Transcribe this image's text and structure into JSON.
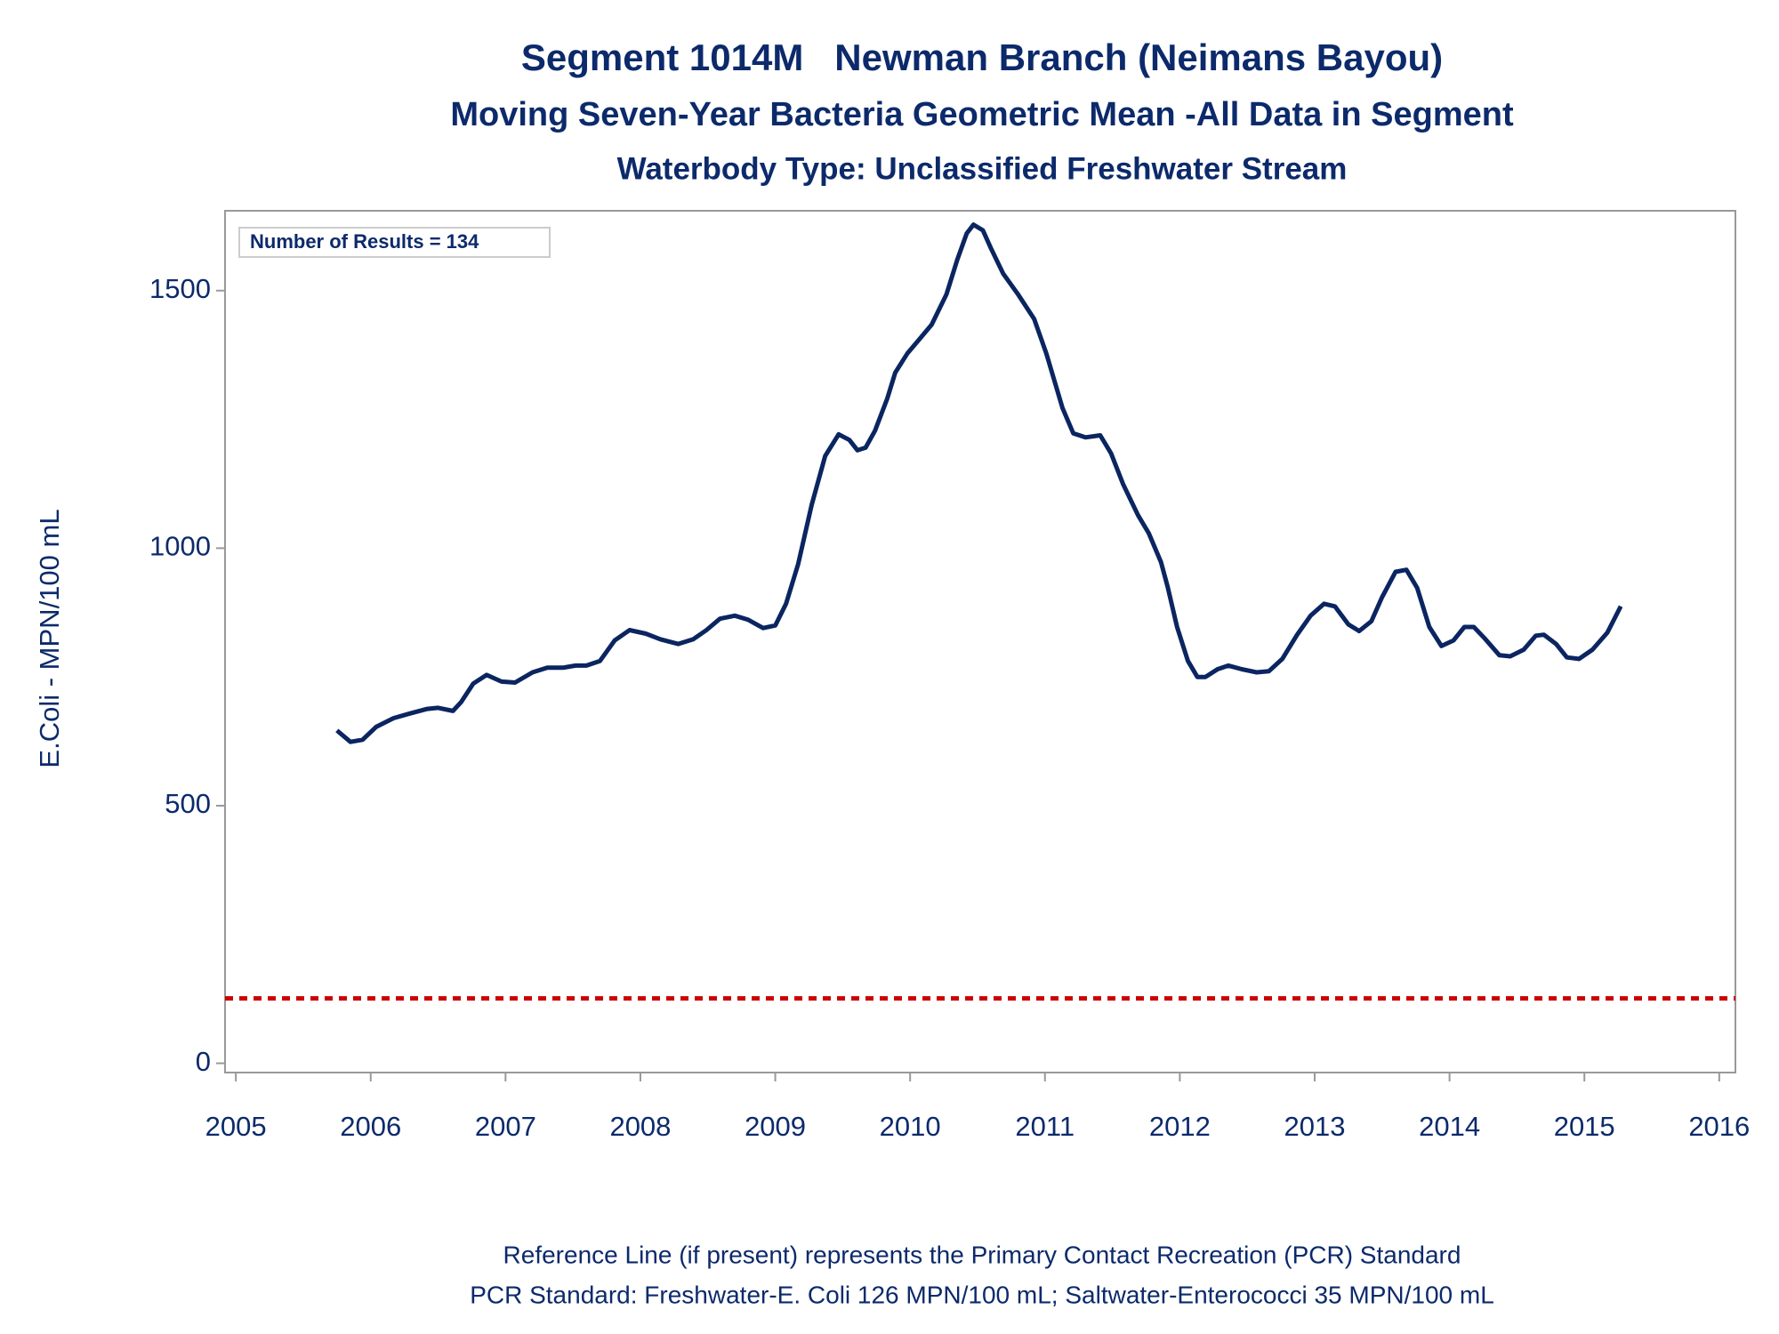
{
  "chart_data": {
    "type": "line",
    "title": "Segment 1014M   Newman Branch (Neimans Bayou)",
    "subtitle": "Moving Seven-Year Bacteria Geometric Mean -All Data in Segment",
    "subtitle2": "Waterbody Type: Unclassified Freshwater Stream",
    "y_label": "E.Coli - MPN/100 mL",
    "annotation": "Number of Results = 134",
    "footnotes": [
      "Reference Line (if present) represents the Primary Contact Recreation (PCR) Standard",
      "PCR Standard: Freshwater-E. Coli 126 MPN/100 mL; Saltwater-Enterococci 35 MPN/100 mL"
    ],
    "color": "#0a2560",
    "reference_line": {
      "value": 126,
      "color": "#cc0000"
    },
    "x": [
      2005.75,
      2005.85,
      2005.94,
      2006.04,
      2006.17,
      2006.29,
      2006.42,
      2006.5,
      2006.61,
      2006.67,
      2006.76,
      2006.86,
      2006.97,
      2007.07,
      2007.2,
      2007.31,
      2007.43,
      2007.52,
      2007.6,
      2007.7,
      2007.81,
      2007.92,
      2008.04,
      2008.15,
      2008.28,
      2008.39,
      2008.49,
      2008.59,
      2008.7,
      2008.8,
      2008.91,
      2009.0,
      2009.08,
      2009.17,
      2009.27,
      2009.37,
      2009.47,
      2009.55,
      2009.61,
      2009.67,
      2009.74,
      2009.83,
      2009.89,
      2009.98,
      2010.06,
      2010.16,
      2010.27,
      2010.35,
      2010.42,
      2010.47,
      2010.54,
      2010.6,
      2010.69,
      2010.8,
      2010.92,
      2011.01,
      2011.13,
      2011.21,
      2011.3,
      2011.41,
      2011.49,
      2011.58,
      2011.69,
      2011.77,
      2011.86,
      2011.91,
      2011.98,
      2012.06,
      2012.13,
      2012.19,
      2012.28,
      2012.36,
      2012.46,
      2012.57,
      2012.66,
      2012.76,
      2012.87,
      2012.97,
      2013.07,
      2013.15,
      2013.25,
      2013.33,
      2013.42,
      2013.5,
      2013.6,
      2013.68,
      2013.76,
      2013.85,
      2013.94,
      2014.03,
      2014.11,
      2014.18,
      2014.26,
      2014.37,
      2014.45,
      2014.55,
      2014.64,
      2014.7,
      2014.79,
      2014.87,
      2014.96,
      2015.06,
      2015.17,
      2015.27
    ],
    "values": [
      646,
      624,
      628,
      653,
      670,
      679,
      688,
      690,
      684,
      701,
      737,
      754,
      741,
      739,
      759,
      768,
      768,
      772,
      772,
      781,
      821,
      841,
      834,
      823,
      814,
      823,
      841,
      863,
      869,
      861,
      845,
      850,
      892,
      969,
      1084,
      1179,
      1221,
      1210,
      1190,
      1195,
      1228,
      1290,
      1341,
      1378,
      1403,
      1434,
      1493,
      1560,
      1611,
      1628,
      1617,
      1582,
      1533,
      1493,
      1445,
      1378,
      1272,
      1223,
      1215,
      1219,
      1184,
      1124,
      1064,
      1029,
      973,
      925,
      847,
      781,
      750,
      750,
      765,
      772,
      765,
      759,
      761,
      785,
      832,
      869,
      892,
      887,
      852,
      839,
      858,
      905,
      954,
      958,
      923,
      847,
      810,
      821,
      847,
      847,
      825,
      792,
      790,
      803,
      830,
      832,
      814,
      788,
      785,
      803,
      836,
      887
    ],
    "xlim": [
      2004.92,
      2016.12
    ],
    "xticks": [
      2005,
      2006,
      2007,
      2008,
      2009,
      2010,
      2011,
      2012,
      2013,
      2014,
      2015,
      2016
    ],
    "ylim": [
      -18,
      1655
    ],
    "yticks": [
      0,
      500,
      1000,
      1500
    ]
  }
}
